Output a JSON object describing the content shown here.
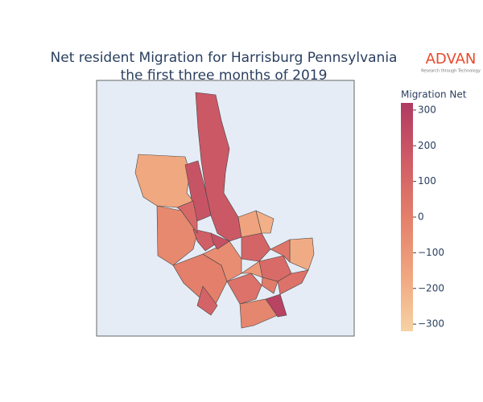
{
  "chart_data": {
    "type": "choropleth",
    "title": [
      "Net resident Migration for Harrisburg Pennsylvania",
      "the first three months of 2019"
    ],
    "logo": {
      "name": "ADVAN",
      "tagline": "Research through Technology"
    },
    "colorbar_title": "Migration Net",
    "values": [
      180,
      -170,
      -40,
      0,
      60,
      -30,
      280,
      -180,
      120,
      90,
      40,
      -60,
      200,
      -150,
      150,
      20,
      -110,
      100,
      210,
      -200,
      60,
      130
    ],
    "colorscale": [
      "#f6d2a3",
      "#f0a57f",
      "#e37f6a",
      "#cf5c66",
      "#b03a61"
    ],
    "clim": [
      -320,
      320
    ],
    "cticks": [
      {
        "value": 300,
        "label": "300"
      },
      {
        "value": 200,
        "label": "200"
      },
      {
        "value": 100,
        "label": "100"
      },
      {
        "value": 0,
        "label": "0"
      },
      {
        "value": -100,
        "label": "−100"
      },
      {
        "value": -200,
        "label": "−200"
      },
      {
        "value": -300,
        "label": "−300"
      }
    ]
  }
}
